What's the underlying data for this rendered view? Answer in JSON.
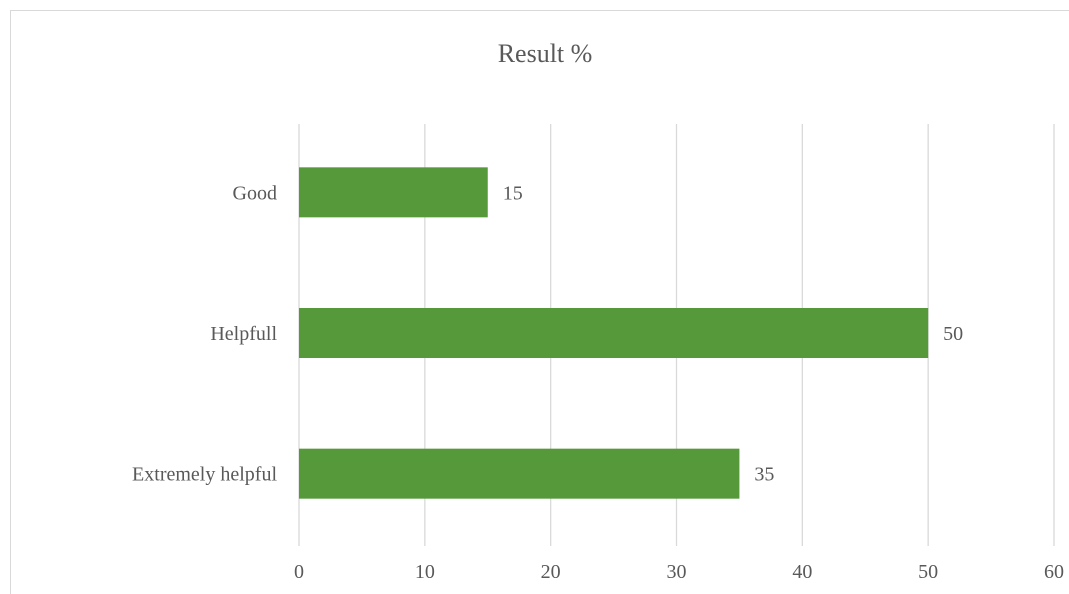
{
  "chart_data": {
    "type": "bar",
    "orientation": "horizontal",
    "title": "Result %",
    "categories": [
      "Good",
      "Helpfull",
      "Extremely helpful"
    ],
    "values": [
      15,
      50,
      35
    ],
    "data_labels": [
      "15",
      "50",
      "35"
    ],
    "xlim": [
      0,
      60
    ],
    "x_ticks": [
      0,
      10,
      20,
      30,
      40,
      50,
      60
    ],
    "xlabel": "",
    "ylabel": "",
    "grid": true,
    "legend": "none",
    "bar_color": "#56993a",
    "grid_color": "#d9d9d9",
    "text_color": "#595959"
  }
}
